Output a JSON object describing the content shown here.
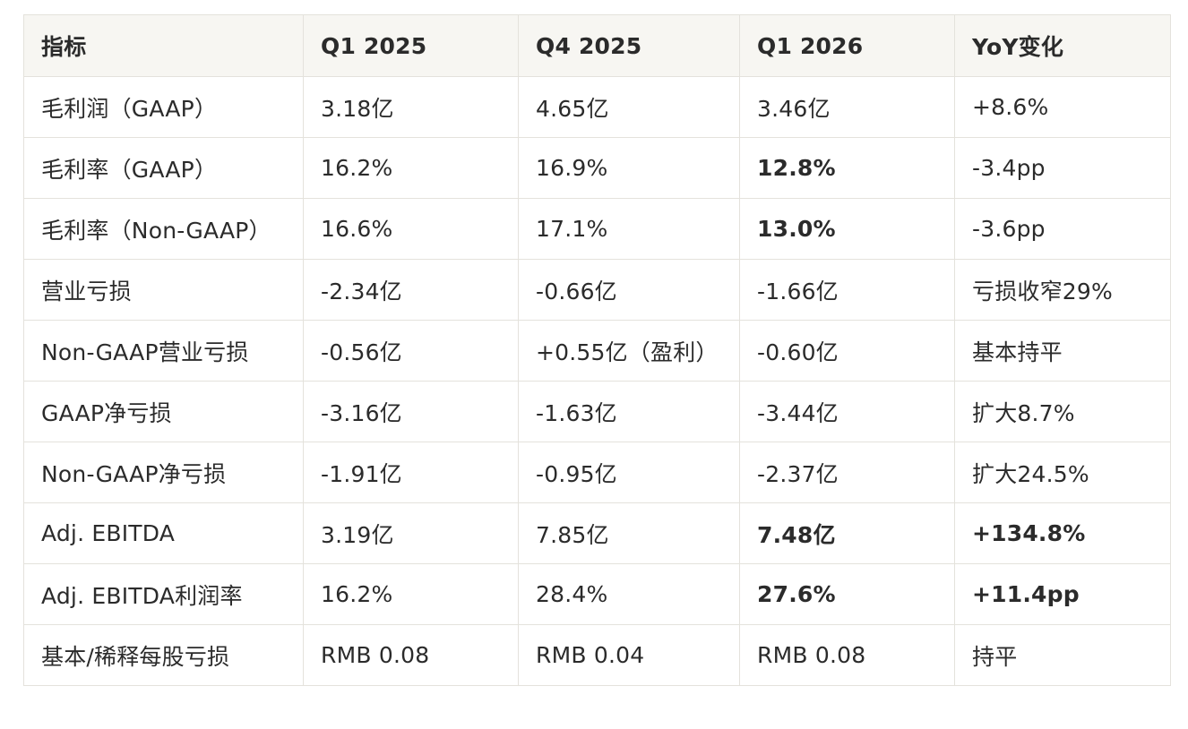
{
  "table": {
    "headers": [
      "指标",
      "Q1 2025",
      "Q4 2025",
      "Q1 2026",
      "YoY变化"
    ],
    "rows": [
      {
        "cells": [
          "毛利润（GAAP）",
          "3.18亿",
          "4.65亿",
          "3.46亿",
          "+8.6%"
        ],
        "bold": [
          false,
          false,
          false,
          false,
          false
        ]
      },
      {
        "cells": [
          "毛利率（GAAP）",
          "16.2%",
          "16.9%",
          "12.8%",
          "-3.4pp"
        ],
        "bold": [
          false,
          false,
          false,
          true,
          false
        ]
      },
      {
        "cells": [
          "毛利率（Non-GAAP）",
          "16.6%",
          "17.1%",
          "13.0%",
          "-3.6pp"
        ],
        "bold": [
          false,
          false,
          false,
          true,
          false
        ]
      },
      {
        "cells": [
          "营业亏损",
          "-2.34亿",
          "-0.66亿",
          "-1.66亿",
          "亏损收窄29%"
        ],
        "bold": [
          false,
          false,
          false,
          false,
          false
        ]
      },
      {
        "cells": [
          "Non-GAAP营业亏损",
          "-0.56亿",
          "+0.55亿（盈利）",
          "-0.60亿",
          "基本持平"
        ],
        "bold": [
          false,
          false,
          false,
          false,
          false
        ]
      },
      {
        "cells": [
          "GAAP净亏损",
          "-3.16亿",
          "-1.63亿",
          "-3.44亿",
          "扩大8.7%"
        ],
        "bold": [
          false,
          false,
          false,
          false,
          false
        ]
      },
      {
        "cells": [
          "Non-GAAP净亏损",
          "-1.91亿",
          "-0.95亿",
          "-2.37亿",
          "扩大24.5%"
        ],
        "bold": [
          false,
          false,
          false,
          false,
          false
        ]
      },
      {
        "cells": [
          "Adj. EBITDA",
          "3.19亿",
          "7.85亿",
          "7.48亿",
          "+134.8%"
        ],
        "bold": [
          false,
          false,
          false,
          true,
          true
        ]
      },
      {
        "cells": [
          "Adj. EBITDA利润率",
          "16.2%",
          "28.4%",
          "27.6%",
          "+11.4pp"
        ],
        "bold": [
          false,
          false,
          false,
          true,
          true
        ]
      },
      {
        "cells": [
          "基本/稀释每股亏损",
          "RMB 0.08",
          "RMB 0.04",
          "RMB 0.08",
          "持平"
        ],
        "bold": [
          false,
          false,
          false,
          false,
          false
        ]
      }
    ]
  }
}
